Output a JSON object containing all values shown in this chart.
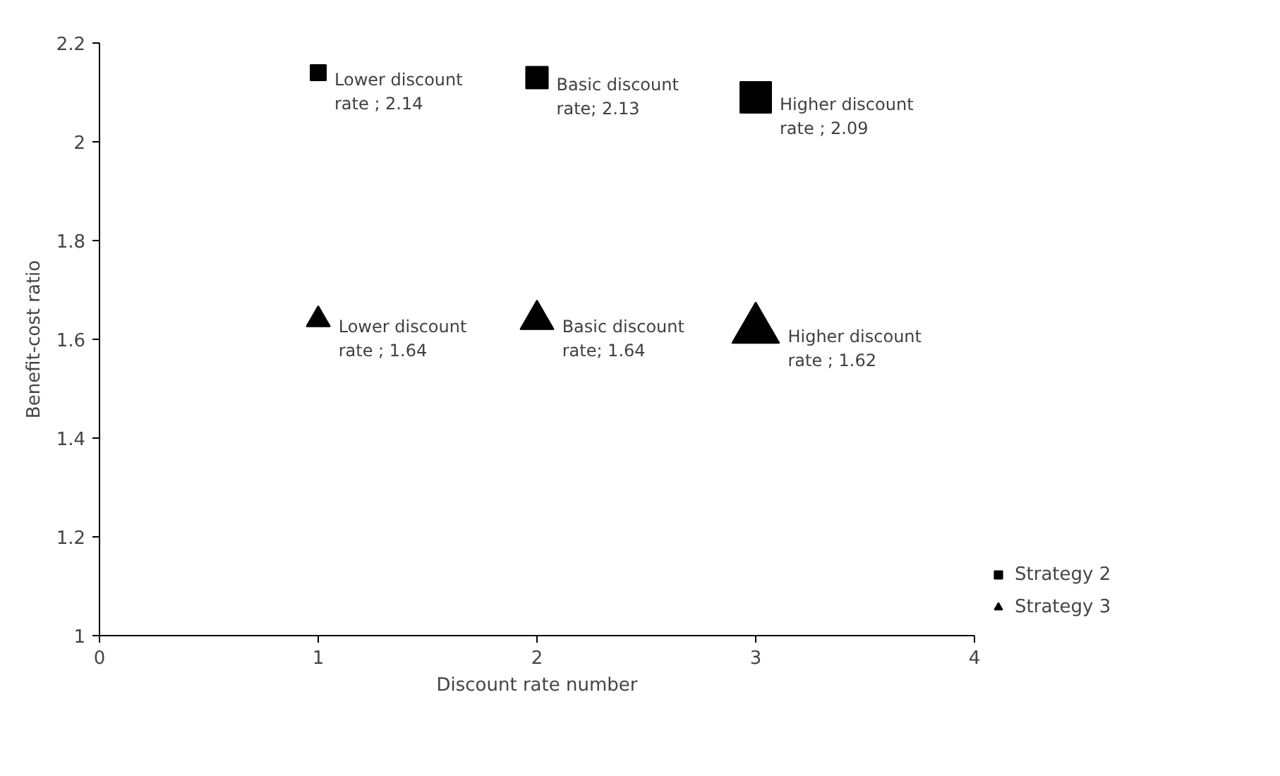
{
  "chart_data": {
    "type": "bubble",
    "xlabel": "Discount rate number",
    "ylabel": "Benefit-cost ratio",
    "x": [
      1,
      2,
      3
    ],
    "xlim": [
      0,
      4
    ],
    "xticks": [
      0,
      1,
      2,
      3,
      4
    ],
    "ylim": [
      1,
      2.2
    ],
    "yticks": [
      1,
      1.2,
      1.4,
      1.6,
      1.8,
      2,
      2.2
    ],
    "series": [
      {
        "name": "Strategy 2",
        "color": "#000000",
        "marker": "square",
        "values": [
          2.14,
          2.13,
          2.09
        ],
        "sizes": [
          0.25,
          0.5,
          1
        ],
        "value_labels": [
          "Lower discount rate ; 2.14",
          "Basic discount rate; 2.13",
          "Higher discount rate ; 2.09"
        ]
      },
      {
        "name": "Strategy 3",
        "color": "#000000",
        "marker": "triangle",
        "values": [
          1.64,
          1.64,
          1.62
        ],
        "sizes": [
          0.25,
          0.5,
          1
        ],
        "value_labels": [
          "Lower discount rate ; 1.64",
          "Basic discount rate; 1.64",
          "Higher discount rate ; 1.62"
        ]
      }
    ],
    "grid": false,
    "legend": "right"
  }
}
